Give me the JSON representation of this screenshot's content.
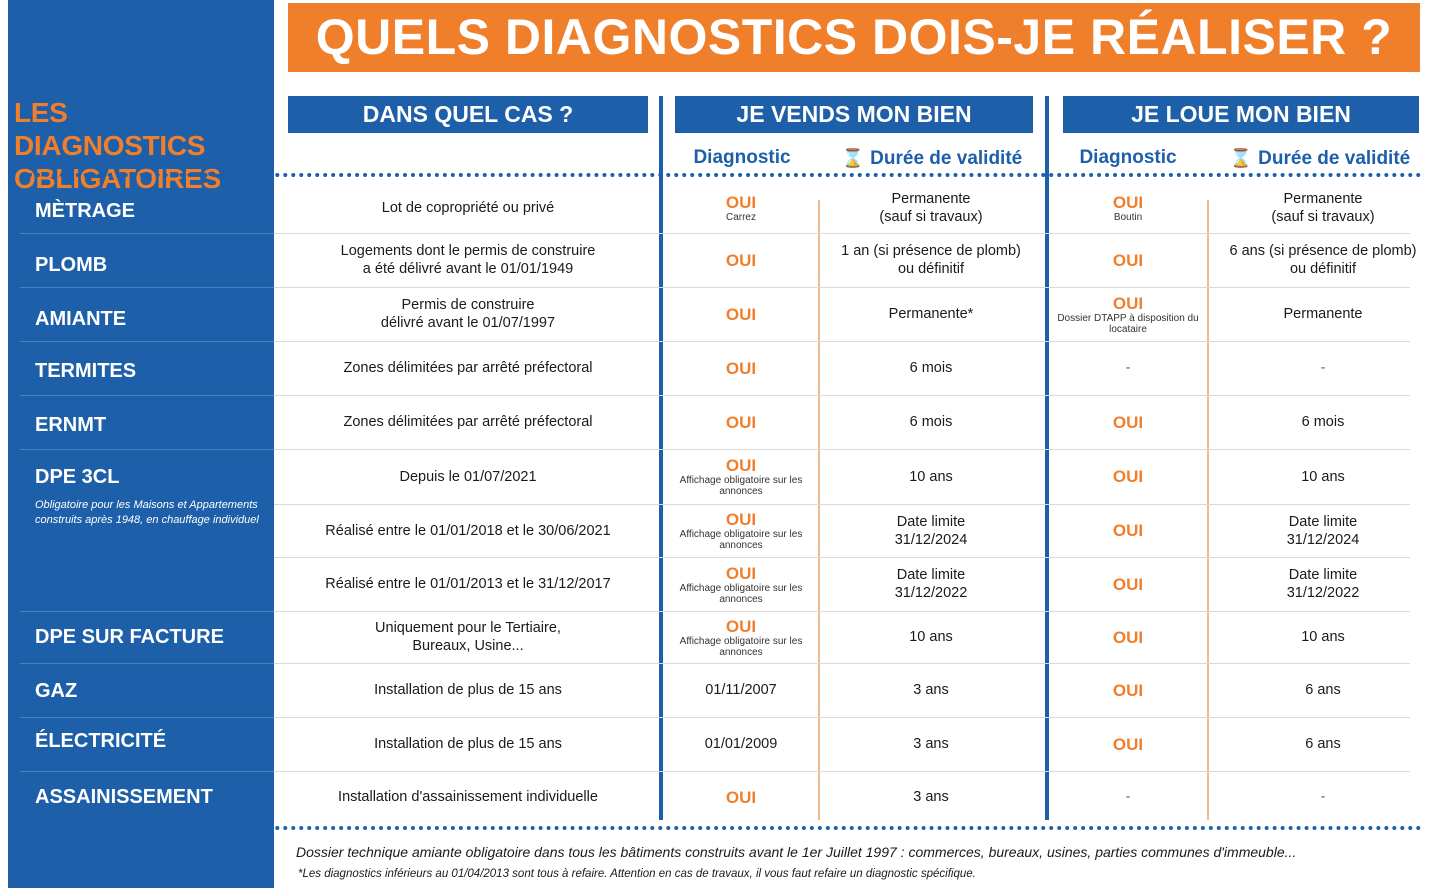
{
  "title": "QUELS DIAGNOSTICS DOIS-JE RÉALISER ?",
  "sidebar": {
    "title_line1": "LES DIAGNOSTICS",
    "title_line2": "OBLIGATOIRES",
    "dpe_note": "Obligatoire pour les Maisons et Appartements construits après 1948, en chauffage individuel"
  },
  "columns": {
    "case": "DANS QUEL CAS ?",
    "sell": "JE VENDS MON BIEN",
    "rent": "JE LOUE MON BIEN",
    "diagnostic": "Diagnostic",
    "validity": "Durée de validité",
    "hourglass_icon": "⌛"
  },
  "rows": [
    {
      "label": "MÈTRAGE",
      "case1": "Lot de copropriété ou privé",
      "case2": "",
      "sell_diag": "OUI",
      "sell_note": "Carrez",
      "sell_valid1": "Permanente",
      "sell_valid2": "(sauf si travaux)",
      "rent_diag": "OUI",
      "rent_note": "Boutin",
      "rent_valid1": "Permanente",
      "rent_valid2": "(sauf si travaux)"
    },
    {
      "label": "PLOMB",
      "case1": "Logements dont le permis de construire",
      "case2": "a été délivré avant le 01/01/1949",
      "sell_diag": "OUI",
      "sell_note": "",
      "sell_valid1": "1 an (si présence de plomb)",
      "sell_valid2": "ou définitif",
      "rent_diag": "OUI",
      "rent_note": "",
      "rent_valid1": "6 ans (si présence de plomb)",
      "rent_valid2": "ou définitif"
    },
    {
      "label": "AMIANTE",
      "case1": "Permis de construire",
      "case2": "délivré avant le 01/07/1997",
      "sell_diag": "OUI",
      "sell_note": "",
      "sell_valid1": "Permanente*",
      "sell_valid2": "",
      "rent_diag": "OUI",
      "rent_note": "Dossier DTAPP à disposition du locataire",
      "rent_valid1": "Permanente",
      "rent_valid2": ""
    },
    {
      "label": "TERMITES",
      "case1": "Zones délimitées par arrêté préfectoral",
      "case2": "",
      "sell_diag": "OUI",
      "sell_note": "",
      "sell_valid1": "6 mois",
      "sell_valid2": "",
      "rent_diag": "-",
      "rent_note": "",
      "rent_valid1": "-",
      "rent_valid2": ""
    },
    {
      "label": "ERNMT",
      "case1": "Zones délimitées par arrêté préfectoral",
      "case2": "",
      "sell_diag": "OUI",
      "sell_note": "",
      "sell_valid1": "6 mois",
      "sell_valid2": "",
      "rent_diag": "OUI",
      "rent_note": "",
      "rent_valid1": "6 mois",
      "rent_valid2": ""
    },
    {
      "label": "DPE 3CL",
      "case1": "Depuis le 01/07/2021",
      "case2": "",
      "sell_diag": "OUI",
      "sell_note": "Affichage obligatoire sur les annonces",
      "sell_valid1": "10 ans",
      "sell_valid2": "",
      "rent_diag": "OUI",
      "rent_note": "",
      "rent_valid1": "10 ans",
      "rent_valid2": ""
    },
    {
      "label": "",
      "case1": "Réalisé entre le 01/01/2018 et le 30/06/2021",
      "case2": "",
      "sell_diag": "OUI",
      "sell_note": "Affichage obligatoire sur les annonces",
      "sell_valid1": "Date limite",
      "sell_valid2": "31/12/2024",
      "rent_diag": "OUI",
      "rent_note": "",
      "rent_valid1": "Date limite",
      "rent_valid2": "31/12/2024"
    },
    {
      "label": "",
      "case1": "Réalisé entre le 01/01/2013 et le 31/12/2017",
      "case2": "",
      "sell_diag": "OUI",
      "sell_note": "Affichage obligatoire sur les annonces",
      "sell_valid1": "Date limite",
      "sell_valid2": "31/12/2022",
      "rent_diag": "OUI",
      "rent_note": "",
      "rent_valid1": "Date limite",
      "rent_valid2": "31/12/2022"
    },
    {
      "label": "DPE SUR FACTURE",
      "case1": "Uniquement pour le Tertiaire,",
      "case2": "Bureaux, Usine...",
      "sell_diag": "OUI",
      "sell_note": "Affichage obligatoire sur les annonces",
      "sell_valid1": "10 ans",
      "sell_valid2": "",
      "rent_diag": "OUI",
      "rent_note": "",
      "rent_valid1": "10 ans",
      "rent_valid2": ""
    },
    {
      "label": "GAZ",
      "case1": "Installation de plus de 15 ans",
      "case2": "",
      "sell_diag": "01/11/2007",
      "sell_note": "",
      "sell_valid1": "3 ans",
      "sell_valid2": "",
      "rent_diag": "OUI",
      "rent_note": "",
      "rent_valid1": "6 ans",
      "rent_valid2": ""
    },
    {
      "label": "ÉLECTRICITÉ",
      "case1": "Installation de plus de 15 ans",
      "case2": "",
      "sell_diag": "01/01/2009",
      "sell_note": "",
      "sell_valid1": "3 ans",
      "sell_valid2": "",
      "rent_diag": "OUI",
      "rent_note": "",
      "rent_valid1": "6 ans",
      "rent_valid2": ""
    },
    {
      "label": "ASSAINISSEMENT",
      "case1": "Installation d'assainissement individuelle",
      "case2": "",
      "sell_diag": "OUI",
      "sell_note": "",
      "sell_valid1": "3 ans",
      "sell_valid2": "",
      "rent_diag": "-",
      "rent_note": "",
      "rent_valid1": "-",
      "rent_valid2": ""
    }
  ],
  "footer": {
    "main": "Dossier technique amiante obligatoire dans tous les bâtiments construits avant le 1er Juillet 1997 : commerces, bureaux, usines, parties communes d'immeuble...",
    "note": "*Les diagnostics inférieurs au 01/04/2013 sont tous à refaire. Attention en cas de travaux, il vous faut refaire un diagnostic spécifique."
  },
  "colors": {
    "blue": "#1d5fa8",
    "orange": "#f07f2c"
  }
}
